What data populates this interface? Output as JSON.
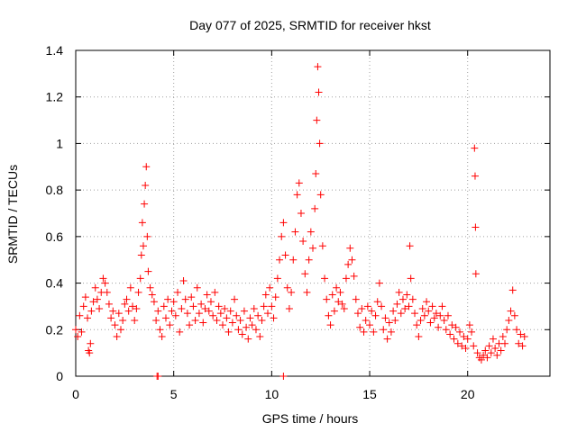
{
  "chart_data": {
    "type": "scatter",
    "title": "Day 077 of 2025, SRMTID for receiver hkst",
    "xlabel": "GPS time / hours",
    "ylabel": "SRMTID / TECUs",
    "xlim": [
      0,
      24.2
    ],
    "ylim": [
      0,
      1.4
    ],
    "x_ticks": [
      0,
      5,
      10,
      15,
      20
    ],
    "y_ticks": [
      0,
      0.2,
      0.4,
      0.6,
      0.8,
      1,
      1.2,
      1.4
    ],
    "y_tick_labels": [
      "0",
      "0.2",
      "0.4",
      "0.6",
      "0.8",
      "1",
      "1.2",
      "1.4"
    ],
    "grid": true,
    "marker": "+",
    "marker_color": "#ff0000",
    "series": [
      {
        "name": "SRMTID",
        "points": [
          [
            0.0,
            0.2
          ],
          [
            0.1,
            0.17
          ],
          [
            0.2,
            0.26
          ],
          [
            0.3,
            0.19
          ],
          [
            0.4,
            0.3
          ],
          [
            0.5,
            0.34
          ],
          [
            0.6,
            0.25
          ],
          [
            0.65,
            0.11
          ],
          [
            0.7,
            0.1
          ],
          [
            0.75,
            0.14
          ],
          [
            0.8,
            0.28
          ],
          [
            0.9,
            0.32
          ],
          [
            1.0,
            0.38
          ],
          [
            1.1,
            0.33
          ],
          [
            1.2,
            0.29
          ],
          [
            1.3,
            0.36
          ],
          [
            1.4,
            0.42
          ],
          [
            1.5,
            0.4
          ],
          [
            1.6,
            0.36
          ],
          [
            1.7,
            0.31
          ],
          [
            1.8,
            0.25
          ],
          [
            1.9,
            0.28
          ],
          [
            2.0,
            0.22
          ],
          [
            2.1,
            0.17
          ],
          [
            2.2,
            0.27
          ],
          [
            2.3,
            0.2
          ],
          [
            2.4,
            0.24
          ],
          [
            2.5,
            0.31
          ],
          [
            2.6,
            0.33
          ],
          [
            2.7,
            0.28
          ],
          [
            2.8,
            0.38
          ],
          [
            2.9,
            0.3
          ],
          [
            3.0,
            0.24
          ],
          [
            3.1,
            0.29
          ],
          [
            3.2,
            0.36
          ],
          [
            3.3,
            0.42
          ],
          [
            3.35,
            0.52
          ],
          [
            3.4,
            0.66
          ],
          [
            3.45,
            0.56
          ],
          [
            3.5,
            0.74
          ],
          [
            3.55,
            0.82
          ],
          [
            3.6,
            0.9
          ],
          [
            3.65,
            0.6
          ],
          [
            3.7,
            0.45
          ],
          [
            3.8,
            0.38
          ],
          [
            3.9,
            0.35
          ],
          [
            4.0,
            0.32
          ],
          [
            4.1,
            0.24
          ],
          [
            4.2,
            0.28
          ],
          [
            4.3,
            0.2
          ],
          [
            4.4,
            0.17
          ],
          [
            4.5,
            0.3
          ],
          [
            4.6,
            0.25
          ],
          [
            4.7,
            0.33
          ],
          [
            4.8,
            0.22
          ],
          [
            4.9,
            0.28
          ],
          [
            5.0,
            0.32
          ],
          [
            5.1,
            0.26
          ],
          [
            5.2,
            0.36
          ],
          [
            5.3,
            0.19
          ],
          [
            5.4,
            0.29
          ],
          [
            5.5,
            0.41
          ],
          [
            5.6,
            0.33
          ],
          [
            5.7,
            0.27
          ],
          [
            5.8,
            0.22
          ],
          [
            5.9,
            0.34
          ],
          [
            6.0,
            0.3
          ],
          [
            6.1,
            0.24
          ],
          [
            6.2,
            0.38
          ],
          [
            6.3,
            0.27
          ],
          [
            6.4,
            0.31
          ],
          [
            6.5,
            0.23
          ],
          [
            6.6,
            0.29
          ],
          [
            6.7,
            0.35
          ],
          [
            6.8,
            0.28
          ],
          [
            6.9,
            0.32
          ],
          [
            7.0,
            0.26
          ],
          [
            7.1,
            0.36
          ],
          [
            7.2,
            0.24
          ],
          [
            7.3,
            0.3
          ],
          [
            7.4,
            0.27
          ],
          [
            7.5,
            0.22
          ],
          [
            7.6,
            0.29
          ],
          [
            7.7,
            0.25
          ],
          [
            7.8,
            0.19
          ],
          [
            7.9,
            0.28
          ],
          [
            8.0,
            0.23
          ],
          [
            8.1,
            0.33
          ],
          [
            8.2,
            0.26
          ],
          [
            8.3,
            0.2
          ],
          [
            8.4,
            0.24
          ],
          [
            8.5,
            0.18
          ],
          [
            8.6,
            0.28
          ],
          [
            8.7,
            0.21
          ],
          [
            8.8,
            0.16
          ],
          [
            8.9,
            0.25
          ],
          [
            9.0,
            0.22
          ],
          [
            9.1,
            0.29
          ],
          [
            9.2,
            0.2
          ],
          [
            9.3,
            0.26
          ],
          [
            9.4,
            0.17
          ],
          [
            9.5,
            0.24
          ],
          [
            9.6,
            0.3
          ],
          [
            9.7,
            0.35
          ],
          [
            9.8,
            0.27
          ],
          [
            9.9,
            0.38
          ],
          [
            10.0,
            0.3
          ],
          [
            10.1,
            0.25
          ],
          [
            10.2,
            0.34
          ],
          [
            10.3,
            0.42
          ],
          [
            10.4,
            0.5
          ],
          [
            10.5,
            0.6
          ],
          [
            10.6,
            0.66
          ],
          [
            10.7,
            0.52
          ],
          [
            10.8,
            0.38
          ],
          [
            10.9,
            0.29
          ],
          [
            11.0,
            0.36
          ],
          [
            11.1,
            0.5
          ],
          [
            11.2,
            0.62
          ],
          [
            11.3,
            0.78
          ],
          [
            11.4,
            0.83
          ],
          [
            11.5,
            0.7
          ],
          [
            11.6,
            0.58
          ],
          [
            11.7,
            0.44
          ],
          [
            11.8,
            0.36
          ],
          [
            11.9,
            0.5
          ],
          [
            12.0,
            0.62
          ],
          [
            12.1,
            0.55
          ],
          [
            12.2,
            0.72
          ],
          [
            12.25,
            0.87
          ],
          [
            12.3,
            1.1
          ],
          [
            12.35,
            1.33
          ],
          [
            12.4,
            1.22
          ],
          [
            12.45,
            1.0
          ],
          [
            12.5,
            0.78
          ],
          [
            12.6,
            0.56
          ],
          [
            12.7,
            0.42
          ],
          [
            12.8,
            0.33
          ],
          [
            12.9,
            0.26
          ],
          [
            13.0,
            0.22
          ],
          [
            13.1,
            0.35
          ],
          [
            13.2,
            0.28
          ],
          [
            13.3,
            0.38
          ],
          [
            13.4,
            0.32
          ],
          [
            13.5,
            0.36
          ],
          [
            13.6,
            0.31
          ],
          [
            13.7,
            0.29
          ],
          [
            13.8,
            0.42
          ],
          [
            13.9,
            0.48
          ],
          [
            14.0,
            0.55
          ],
          [
            14.1,
            0.5
          ],
          [
            14.2,
            0.43
          ],
          [
            14.3,
            0.33
          ],
          [
            14.4,
            0.27
          ],
          [
            14.5,
            0.21
          ],
          [
            14.6,
            0.29
          ],
          [
            14.7,
            0.19
          ],
          [
            14.8,
            0.24
          ],
          [
            14.9,
            0.3
          ],
          [
            15.0,
            0.22
          ],
          [
            15.1,
            0.28
          ],
          [
            15.2,
            0.19
          ],
          [
            15.3,
            0.26
          ],
          [
            15.4,
            0.32
          ],
          [
            15.5,
            0.4
          ],
          [
            15.6,
            0.3
          ],
          [
            15.7,
            0.2
          ],
          [
            15.8,
            0.25
          ],
          [
            15.9,
            0.16
          ],
          [
            16.0,
            0.23
          ],
          [
            16.1,
            0.19
          ],
          [
            16.2,
            0.28
          ],
          [
            16.3,
            0.24
          ],
          [
            16.4,
            0.31
          ],
          [
            16.5,
            0.36
          ],
          [
            16.6,
            0.27
          ],
          [
            16.7,
            0.33
          ],
          [
            16.8,
            0.29
          ],
          [
            16.9,
            0.35
          ],
          [
            17.0,
            0.3
          ],
          [
            17.05,
            0.56
          ],
          [
            17.1,
            0.42
          ],
          [
            17.2,
            0.33
          ],
          [
            17.3,
            0.27
          ],
          [
            17.4,
            0.22
          ],
          [
            17.5,
            0.17
          ],
          [
            17.6,
            0.24
          ],
          [
            17.7,
            0.29
          ],
          [
            17.8,
            0.26
          ],
          [
            17.9,
            0.32
          ],
          [
            18.0,
            0.28
          ],
          [
            18.1,
            0.23
          ],
          [
            18.2,
            0.3
          ],
          [
            18.3,
            0.25
          ],
          [
            18.4,
            0.27
          ],
          [
            18.5,
            0.21
          ],
          [
            18.6,
            0.26
          ],
          [
            18.7,
            0.3
          ],
          [
            18.8,
            0.24
          ],
          [
            18.9,
            0.2
          ],
          [
            19.0,
            0.26
          ],
          [
            19.1,
            0.18
          ],
          [
            19.2,
            0.22
          ],
          [
            19.3,
            0.16
          ],
          [
            19.4,
            0.21
          ],
          [
            19.5,
            0.14
          ],
          [
            19.6,
            0.19
          ],
          [
            19.7,
            0.13
          ],
          [
            19.8,
            0.17
          ],
          [
            19.9,
            0.12
          ],
          [
            20.0,
            0.16
          ],
          [
            20.1,
            0.22
          ],
          [
            20.2,
            0.19
          ],
          [
            20.3,
            0.13
          ],
          [
            20.35,
            0.98
          ],
          [
            20.38,
            0.86
          ],
          [
            20.4,
            0.64
          ],
          [
            20.42,
            0.44
          ],
          [
            20.5,
            0.1
          ],
          [
            20.6,
            0.08
          ],
          [
            20.7,
            0.07
          ],
          [
            20.8,
            0.09
          ],
          [
            20.9,
            0.11
          ],
          [
            21.0,
            0.08
          ],
          [
            21.1,
            0.13
          ],
          [
            21.2,
            0.1
          ],
          [
            21.3,
            0.16
          ],
          [
            21.4,
            0.12
          ],
          [
            21.5,
            0.09
          ],
          [
            21.6,
            0.14
          ],
          [
            21.7,
            0.11
          ],
          [
            21.8,
            0.17
          ],
          [
            21.9,
            0.14
          ],
          [
            22.0,
            0.2
          ],
          [
            22.1,
            0.24
          ],
          [
            22.2,
            0.28
          ],
          [
            22.3,
            0.37
          ],
          [
            22.4,
            0.26
          ],
          [
            22.5,
            0.2
          ],
          [
            22.6,
            0.14
          ],
          [
            22.7,
            0.18
          ],
          [
            22.8,
            0.13
          ],
          [
            22.9,
            0.17
          ],
          [
            4.15,
            0.0
          ],
          [
            4.2,
            0.0
          ],
          [
            10.6,
            0.0
          ]
        ]
      }
    ]
  }
}
